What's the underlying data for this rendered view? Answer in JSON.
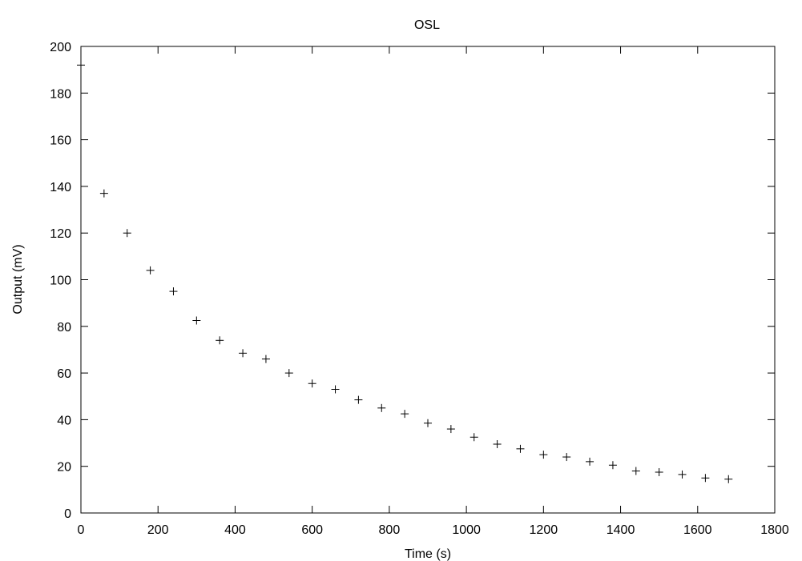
{
  "chart_data": {
    "type": "scatter",
    "title": "OSL",
    "xlabel": "Time (s)",
    "ylabel": "Output (mV)",
    "xlim": [
      0,
      1800
    ],
    "ylim": [
      0,
      200
    ],
    "xticks": [
      "0",
      "200",
      "400",
      "600",
      "800",
      "1000",
      "1200",
      "1400",
      "1600",
      "1800"
    ],
    "yticks": [
      "0",
      "20",
      "40",
      "60",
      "80",
      "100",
      "120",
      "140",
      "160",
      "180",
      "200"
    ],
    "grid": false,
    "marker": "+",
    "series": [
      {
        "x": [
          0,
          60,
          120,
          180,
          240,
          300,
          360,
          420,
          480,
          540,
          600,
          660,
          720,
          780,
          840,
          900,
          960,
          1020,
          1080,
          1140,
          1200,
          1260,
          1320,
          1380,
          1440,
          1500,
          1560,
          1620,
          1680
        ],
        "y": [
          192,
          137,
          120,
          104,
          95,
          82.5,
          74,
          68.5,
          66,
          60,
          55.5,
          53,
          48.5,
          45,
          42.5,
          38.5,
          36,
          32.5,
          29.5,
          27.5,
          25,
          24,
          22,
          20.5,
          18,
          17.5,
          16.5,
          15,
          14.5
        ]
      }
    ]
  }
}
